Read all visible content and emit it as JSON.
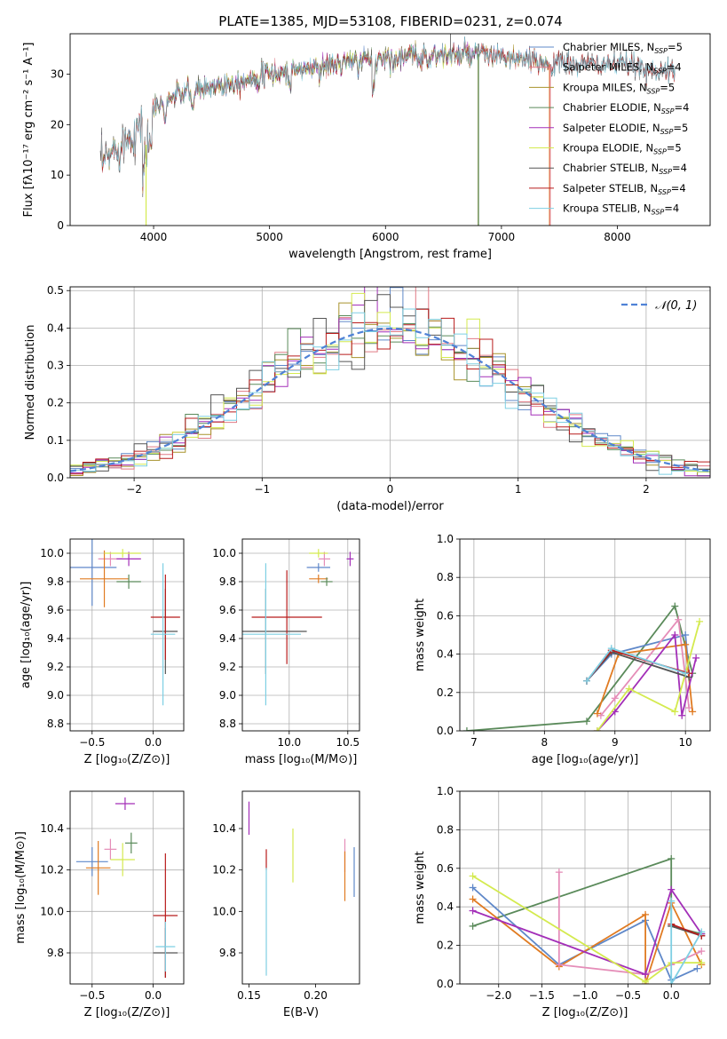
{
  "figure_title": "PLATE=1385, MJD=53108, FIBERID=0231, z=0.074",
  "colors": {
    "Chabrier MILES": "#5f88c9",
    "Salpeter MILES": "#e07a85",
    "Kroupa MILES": "#a8932c",
    "Chabrier ELODIE": "#5a8a5a",
    "Salpeter ELODIE": "#a32fb8",
    "Kroupa ELODIE": "#d4ea4f",
    "Chabrier STELIB": "#555555",
    "Salpeter STELIB": "#b81c1c",
    "Kroupa STELIB": "#7ecfe3",
    "orange": "#e07b22",
    "pink": "#e58db8",
    "normal": "#4f82d6",
    "grid": "#b0b0b0"
  },
  "chart_data": [
    {
      "id": "spectrum",
      "type": "line",
      "xlabel": "wavelength [Angstrom, rest frame]",
      "ylabel": "Flux [fλ10⁻¹⁷ erg cm⁻² s⁻¹ A⁻¹]",
      "xlim": [
        3280,
        8800
      ],
      "ylim": [
        0,
        38
      ],
      "xticks": [
        4000,
        5000,
        6000,
        7000,
        8000
      ],
      "yticks": [
        0,
        10,
        20,
        30
      ],
      "grid": false,
      "legend_position": "upper-right",
      "series": [
        {
          "name": "Chabrier MILES, N",
          "sub": "SSP",
          "suffix": "=5",
          "color": "#5f88c9"
        },
        {
          "name": "Salpeter MILES, N",
          "sub": "SSP",
          "suffix": "=4",
          "color": "#e07a85"
        },
        {
          "name": "Kroupa MILES, N",
          "sub": "SSP",
          "suffix": "=5",
          "color": "#a8932c"
        },
        {
          "name": "Chabrier ELODIE, N",
          "sub": "SSP",
          "suffix": "=4",
          "color": "#5a8a5a"
        },
        {
          "name": "Salpeter ELODIE, N",
          "sub": "SSP",
          "suffix": "=5",
          "color": "#a32fb8"
        },
        {
          "name": "Kroupa ELODIE, N",
          "sub": "SSP",
          "suffix": "=5",
          "color": "#d4ea4f"
        },
        {
          "name": "Chabrier STELIB, N",
          "sub": "SSP",
          "suffix": "=4",
          "color": "#555555"
        },
        {
          "name": "Salpeter STELIB, N",
          "sub": "SSP",
          "suffix": "=4",
          "color": "#b81c1c"
        },
        {
          "name": "Kroupa STELIB, N",
          "sub": "SSP",
          "suffix": "=4",
          "color": "#7ecfe3"
        }
      ],
      "continuum": {
        "x": [
          3550,
          3700,
          3900,
          4000,
          4200,
          4400,
          4700,
          5000,
          5300,
          5600,
          5900,
          6200,
          6500,
          6800,
          7100,
          7400,
          7700,
          8000,
          8300,
          8500
        ],
        "y": [
          12,
          16,
          20,
          23,
          26,
          27,
          28.5,
          30,
          31,
          32,
          33,
          33.5,
          33.7,
          34,
          33,
          32,
          32,
          32,
          31,
          30
        ]
      },
      "model_ranges": {
        "MILES": [
          3550,
          7400
        ],
        "ELODIE": [
          4000,
          6800
        ],
        "STELIB": [
          3550,
          8500
        ]
      },
      "spikes": [
        {
          "x": 3935,
          "ymin": 0,
          "ymax": 16,
          "color": "#d4ea4f"
        },
        {
          "x": 6800,
          "ymin": 0,
          "ymax": 34,
          "color": "#a8932c"
        },
        {
          "x": 6802,
          "ymin": 0,
          "ymax": 34,
          "color": "#5a8a5a"
        },
        {
          "x": 7415,
          "ymin": 0,
          "ymax": 32,
          "color": "#e07b22"
        },
        {
          "x": 7420,
          "ymin": 0,
          "ymax": 32,
          "color": "#e07a85"
        }
      ]
    },
    {
      "id": "residuals",
      "type": "histogram",
      "xlabel": "(data-model)/error",
      "ylabel": "Normed distribution",
      "xlim": [
        -2.5,
        2.5
      ],
      "ylim": [
        0,
        0.51
      ],
      "xticks": [
        -2,
        -1,
        0,
        1,
        2
      ],
      "xtick_labels": [
        "−2",
        "−1",
        "0",
        "1",
        "2"
      ],
      "yticks": [
        0.0,
        0.1,
        0.2,
        0.3,
        0.4,
        0.5
      ],
      "ytick_labels": [
        "0.0",
        "0.1",
        "0.2",
        "0.3",
        "0.4",
        "0.5"
      ],
      "grid": true,
      "legend_position": "upper-right",
      "reference_curve": {
        "name": "𝒩(0, 1)",
        "mean": 0,
        "sigma": 1
      },
      "bin_width": 0.1,
      "bin_range": [
        -2.5,
        2.5
      ],
      "series_count": 9
    },
    {
      "id": "age_vs_Z",
      "type": "scatter",
      "xlabel": "Z [log₁₀(Z/Z⊙)]",
      "ylabel": "age  [log₁₀(age/yr)]",
      "xlim": [
        -0.68,
        0.25
      ],
      "ylim": [
        8.75,
        10.1
      ],
      "xticks": [
        -0.5,
        0.0
      ],
      "xtick_labels": [
        "−0.5",
        "0.0"
      ],
      "yticks": [
        8.8,
        9.0,
        9.2,
        9.4,
        9.6,
        9.8,
        10.0
      ],
      "ytick_labels": [
        "8.8",
        "9.0",
        "9.2",
        "9.4",
        "9.6",
        "9.8",
        "10.0"
      ],
      "grid": true,
      "points": [
        {
          "series": "Chabrier MILES",
          "x": -0.5,
          "y": 9.9,
          "xerr": 0.2,
          "yerr": 0.27,
          "color": "#5f88c9"
        },
        {
          "series": "Salpeter MILES",
          "x": -0.35,
          "y": 9.96,
          "xerr": 0.1,
          "yerr": 0.05,
          "color": "#e58db8"
        },
        {
          "series": "Kroupa MILES",
          "x": -0.4,
          "y": 9.82,
          "xerr": 0.2,
          "yerr": 0.2,
          "color": "#e07b22"
        },
        {
          "series": "Chabrier ELODIE",
          "x": -0.2,
          "y": 9.8,
          "xerr": 0.1,
          "yerr": 0.05,
          "color": "#5a8a5a"
        },
        {
          "series": "Salpeter ELODIE",
          "x": -0.2,
          "y": 9.96,
          "xerr": 0.1,
          "yerr": 0.05,
          "color": "#a32fb8"
        },
        {
          "series": "Kroupa ELODIE",
          "x": -0.25,
          "y": 10.0,
          "xerr": 0.15,
          "yerr": 0.03,
          "color": "#d4ea4f"
        },
        {
          "series": "Chabrier STELIB",
          "x": 0.1,
          "y": 9.45,
          "xerr": 0.1,
          "yerr": 0.3,
          "color": "#555555"
        },
        {
          "series": "Salpeter STELIB",
          "x": 0.1,
          "y": 9.55,
          "xerr": 0.12,
          "yerr": 0.3,
          "color": "#b81c1c"
        },
        {
          "series": "Kroupa STELIB",
          "x": 0.08,
          "y": 9.43,
          "xerr": 0.1,
          "yerr": 0.5,
          "color": "#7ecfe3"
        }
      ]
    },
    {
      "id": "age_vs_mass",
      "type": "scatter",
      "xlabel": "mass [log₁₀(M/M⊙)]",
      "ylabel": "",
      "xlim": [
        9.6,
        10.6
      ],
      "ylim": [
        8.75,
        10.1
      ],
      "xticks": [
        10.0,
        10.5
      ],
      "xtick_labels": [
        "10.0",
        "10.5"
      ],
      "yticks": [
        8.8,
        9.0,
        9.2,
        9.4,
        9.6,
        9.8,
        10.0
      ],
      "ytick_labels": [
        "8.8",
        "9.0",
        "9.2",
        "9.4",
        "9.6",
        "9.8",
        "10.0"
      ],
      "grid": true,
      "points": [
        {
          "series": "Chabrier MILES",
          "x": 10.25,
          "y": 9.9,
          "xerr": 0.1,
          "yerr": 0.03,
          "color": "#5f88c9"
        },
        {
          "series": "Salpeter MILES",
          "x": 10.3,
          "y": 9.96,
          "xerr": 0.05,
          "yerr": 0.05,
          "color": "#e58db8"
        },
        {
          "series": "Kroupa MILES",
          "x": 10.25,
          "y": 9.82,
          "xerr": 0.08,
          "yerr": 0.03,
          "color": "#e07b22"
        },
        {
          "series": "Chabrier ELODIE",
          "x": 10.32,
          "y": 9.8,
          "xerr": 0.05,
          "yerr": 0.03,
          "color": "#5a8a5a"
        },
        {
          "series": "Salpeter ELODIE",
          "x": 10.52,
          "y": 9.96,
          "xerr": 0.03,
          "yerr": 0.05,
          "color": "#a32fb8"
        },
        {
          "series": "Kroupa ELODIE",
          "x": 10.25,
          "y": 10.0,
          "xerr": 0.08,
          "yerr": 0.03,
          "color": "#d4ea4f"
        },
        {
          "series": "Chabrier STELIB",
          "x": 9.8,
          "y": 9.45,
          "xerr": 0.35,
          "yerr": 0.3,
          "color": "#555555"
        },
        {
          "series": "Salpeter STELIB",
          "x": 9.98,
          "y": 9.55,
          "xerr": 0.3,
          "yerr": 0.33,
          "color": "#b81c1c"
        },
        {
          "series": "Kroupa STELIB",
          "x": 9.8,
          "y": 9.43,
          "xerr": 0.3,
          "yerr": 0.5,
          "color": "#7ecfe3"
        }
      ]
    },
    {
      "id": "weight_vs_age",
      "type": "line",
      "xlabel": "age  [log₁₀(age/yr)]",
      "ylabel": "mass weight",
      "xlim": [
        6.8,
        10.35
      ],
      "ylim": [
        0,
        1.0
      ],
      "xticks": [
        7,
        8,
        9,
        10
      ],
      "xtick_labels": [
        "7",
        "8",
        "9",
        "10"
      ],
      "yticks": [
        0.0,
        0.2,
        0.4,
        0.6,
        0.8,
        1.0
      ],
      "ytick_labels": [
        "0.0",
        "0.2",
        "0.4",
        "0.6",
        "0.8",
        "1.0"
      ],
      "grid": true,
      "series": [
        {
          "name": "Chabrier ELODIE",
          "color": "#5a8a5a",
          "x": [
            6.9,
            8.6,
            9.85,
            10.1
          ],
          "y": [
            0.0,
            0.05,
            0.65,
            0.3
          ]
        },
        {
          "name": "Chabrier MILES",
          "color": "#5f88c9",
          "x": [
            8.6,
            8.95,
            10.0,
            10.05
          ],
          "y": [
            0.26,
            0.4,
            0.5,
            0.3
          ]
        },
        {
          "name": "Salpeter MILES",
          "color": "#e58db8",
          "x": [
            8.8,
            9.0,
            9.9,
            10.05
          ],
          "y": [
            0.08,
            0.17,
            0.58,
            0.12
          ]
        },
        {
          "name": "Kroupa MILES",
          "color": "#e07b22",
          "x": [
            8.75,
            9.05,
            10.0,
            10.1
          ],
          "y": [
            0.09,
            0.4,
            0.45,
            0.1
          ]
        },
        {
          "name": "Salpeter ELODIE",
          "color": "#a32fb8",
          "x": [
            8.75,
            9.0,
            9.85,
            9.95,
            10.15
          ],
          "y": [
            0.0,
            0.1,
            0.5,
            0.08,
            0.38
          ]
        },
        {
          "name": "Kroupa ELODIE",
          "color": "#d4ea4f",
          "x": [
            8.75,
            9.2,
            9.85,
            10.2
          ],
          "y": [
            0.0,
            0.22,
            0.1,
            0.57
          ]
        },
        {
          "name": "Chabrier STELIB",
          "color": "#555555",
          "x": [
            8.6,
            8.95,
            10.05
          ],
          "y": [
            0.26,
            0.41,
            0.28
          ]
        },
        {
          "name": "Salpeter STELIB",
          "color": "#b81c1c",
          "x": [
            8.6,
            8.95,
            10.05
          ],
          "y": [
            0.26,
            0.42,
            0.3
          ]
        },
        {
          "name": "Kroupa STELIB",
          "color": "#7ecfe3",
          "x": [
            8.6,
            8.95,
            10.0
          ],
          "y": [
            0.26,
            0.43,
            0.3
          ]
        }
      ]
    },
    {
      "id": "mass_vs_Z",
      "type": "scatter",
      "xlabel": "Z [log₁₀(Z/Z⊙)]",
      "ylabel": "mass [log₁₀(M/M⊙)]",
      "xlim": [
        -0.68,
        0.25
      ],
      "ylim": [
        9.65,
        10.58
      ],
      "xticks": [
        -0.5,
        0.0
      ],
      "xtick_labels": [
        "−0.5",
        "0.0"
      ],
      "yticks": [
        9.8,
        10.0,
        10.2,
        10.4
      ],
      "ytick_labels": [
        "9.8",
        "10.0",
        "10.2",
        "10.4"
      ],
      "grid": true,
      "points": [
        {
          "series": "Chabrier MILES",
          "x": -0.5,
          "y": 10.24,
          "xerr": 0.13,
          "yerr": 0.07,
          "color": "#5f88c9"
        },
        {
          "series": "Salpeter MILES",
          "x": -0.35,
          "y": 10.3,
          "xerr": 0.05,
          "yerr": 0.05,
          "color": "#e58db8"
        },
        {
          "series": "Kroupa MILES",
          "x": -0.45,
          "y": 10.21,
          "xerr": 0.1,
          "yerr": 0.13,
          "color": "#e07b22"
        },
        {
          "series": "Chabrier ELODIE",
          "x": -0.18,
          "y": 10.33,
          "xerr": 0.05,
          "yerr": 0.05,
          "color": "#5a8a5a"
        },
        {
          "series": "Salpeter ELODIE",
          "x": -0.23,
          "y": 10.52,
          "xerr": 0.08,
          "yerr": 0.03,
          "color": "#a32fb8"
        },
        {
          "series": "Kroupa ELODIE",
          "x": -0.25,
          "y": 10.25,
          "xerr": 0.1,
          "yerr": 0.08,
          "color": "#d4ea4f"
        },
        {
          "series": "Chabrier STELIB",
          "x": 0.1,
          "y": 9.8,
          "xerr": 0.1,
          "yerr": 0.12,
          "color": "#555555"
        },
        {
          "series": "Salpeter STELIB",
          "x": 0.1,
          "y": 9.98,
          "xerr": 0.1,
          "yerr": 0.3,
          "color": "#b81c1c"
        },
        {
          "series": "Kroupa STELIB",
          "x": 0.1,
          "y": 9.83,
          "xerr": 0.08,
          "yerr": 0.12,
          "color": "#7ecfe3"
        }
      ]
    },
    {
      "id": "mass_vs_ebv",
      "type": "scatter",
      "xlabel": "E(B-V)",
      "ylabel": "",
      "xlim": [
        0.145,
        0.233
      ],
      "ylim": [
        9.65,
        10.58
      ],
      "xticks": [
        0.15,
        0.2
      ],
      "xtick_labels": [
        "0.15",
        "0.20"
      ],
      "yticks": [
        9.8,
        10.0,
        10.2,
        10.4
      ],
      "ytick_labels": [
        "9.8",
        "10.0",
        "10.2",
        "10.4"
      ],
      "grid": false,
      "points": [
        {
          "series": "Chabrier MILES",
          "x": 0.229,
          "y": 10.19,
          "xerr": 0,
          "yerr": 0.12,
          "color": "#5f88c9"
        },
        {
          "series": "Salpeter MILES",
          "x": 0.222,
          "y": 10.27,
          "xerr": 0,
          "yerr": 0.08,
          "color": "#e58db8"
        },
        {
          "series": "Kroupa MILES",
          "x": 0.222,
          "y": 10.17,
          "xerr": 0,
          "yerr": 0.12,
          "color": "#e07b22"
        },
        {
          "series": "Salpeter ELODIE",
          "x": 0.15,
          "y": 10.45,
          "xerr": 0,
          "yerr": 0.08,
          "color": "#a32fb8"
        },
        {
          "series": "Kroupa ELODIE",
          "x": 0.183,
          "y": 10.27,
          "xerr": 0,
          "yerr": 0.13,
          "color": "#d4ea4f"
        },
        {
          "series": "Salpeter STELIB",
          "x": 0.163,
          "y": 10.25,
          "xerr": 0,
          "yerr": 0.05,
          "color": "#b81c1c"
        },
        {
          "series": "Kroupa STELIB",
          "x": 0.163,
          "y": 9.95,
          "xerr": 0,
          "yerr": 0.26,
          "color": "#7ecfe3"
        }
      ]
    },
    {
      "id": "weight_vs_Z",
      "type": "line",
      "xlabel": "Z [log₁₀(Z/Z⊙)]",
      "ylabel": "mass weight",
      "xlim": [
        -2.45,
        0.45
      ],
      "ylim": [
        0,
        1.0
      ],
      "xticks": [
        -2.0,
        -1.5,
        -1.0,
        -0.5,
        0.0
      ],
      "xtick_labels": [
        "−2.0",
        "−1.5",
        "−1.0",
        "−0.5",
        "0.0"
      ],
      "yticks": [
        0.0,
        0.2,
        0.4,
        0.6,
        0.8,
        1.0
      ],
      "ytick_labels": [
        "0.0",
        "0.2",
        "0.4",
        "0.6",
        "0.8",
        "1.0"
      ],
      "grid": true,
      "series": [
        {
          "name": "Chabrier ELODIE",
          "color": "#5a8a5a",
          "x": [
            -2.3,
            0.0,
            0.0,
            0.35
          ],
          "y": [
            0.3,
            0.65,
            0.3,
            0.26
          ]
        },
        {
          "name": "Chabrier MILES",
          "color": "#5f88c9",
          "x": [
            -2.3,
            -1.3,
            -0.3,
            0.0,
            0.3
          ],
          "y": [
            0.5,
            0.1,
            0.33,
            0.02,
            0.08
          ]
        },
        {
          "name": "Kroupa MILES",
          "color": "#e07b22",
          "x": [
            -2.3,
            -1.3,
            -0.3,
            -0.3,
            0.0,
            0.35
          ],
          "y": [
            0.44,
            0.09,
            0.36,
            0.0,
            0.42,
            0.1
          ]
        },
        {
          "name": "Salpeter MILES",
          "color": "#e58db8",
          "x": [
            -1.3,
            -1.3,
            -0.3,
            0.0,
            0.35
          ],
          "y": [
            0.58,
            0.1,
            0.05,
            0.1,
            0.17
          ]
        },
        {
          "name": "Salpeter ELODIE",
          "color": "#a32fb8",
          "x": [
            -2.3,
            -0.3,
            0.0,
            0.35
          ],
          "y": [
            0.38,
            0.05,
            0.49,
            0.26
          ]
        },
        {
          "name": "Kroupa ELODIE",
          "color": "#d4ea4f",
          "x": [
            -2.3,
            -0.3,
            0.0,
            0.35
          ],
          "y": [
            0.56,
            0.01,
            0.11,
            0.11
          ]
        },
        {
          "name": "Chabrier STELIB",
          "color": "#555555",
          "x": [
            0.0,
            0.35
          ],
          "y": [
            0.3,
            0.25
          ]
        },
        {
          "name": "Salpeter STELIB",
          "color": "#b81c1c",
          "x": [
            0.0,
            0.35
          ],
          "y": [
            0.31,
            0.25
          ]
        },
        {
          "name": "Kroupa STELIB",
          "color": "#7ecfe3",
          "x": [
            0.0,
            0.0,
            0.35
          ],
          "y": [
            0.43,
            0.0,
            0.27
          ]
        }
      ]
    }
  ]
}
